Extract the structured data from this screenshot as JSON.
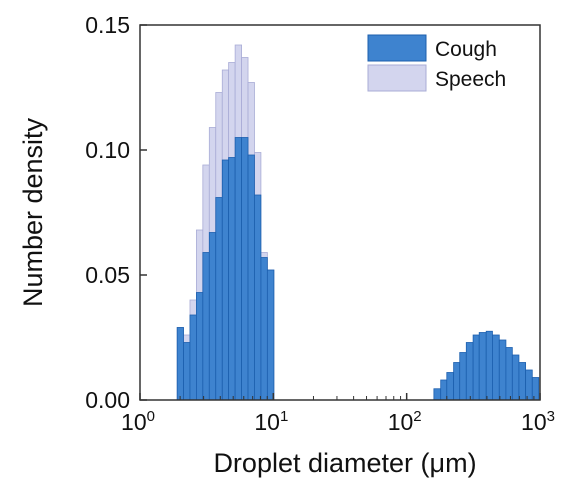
{
  "chart_data": {
    "type": "bar",
    "x_scale": "log",
    "xlabel": "Droplet diameter (μm)",
    "ylabel": "Number density",
    "xlim": [
      1,
      1000
    ],
    "ylim": [
      0,
      0.15
    ],
    "grid": false,
    "legend_position": "top-right",
    "x_ticks": [
      {
        "value": 1,
        "base": "10",
        "exp": "0"
      },
      {
        "value": 10,
        "base": "10",
        "exp": "1"
      },
      {
        "value": 100,
        "base": "10",
        "exp": "2"
      },
      {
        "value": 1000,
        "base": "10",
        "exp": "3"
      }
    ],
    "y_ticks": [
      "0.00",
      "0.05",
      "0.10",
      "0.15"
    ],
    "y_tick_values": [
      0,
      0.05,
      0.1,
      0.15
    ],
    "series": [
      {
        "name": "Speech",
        "color": "#d3d5ee",
        "edge": "#a9acd6",
        "bins": [
          {
            "x0": 1.9,
            "x1": 2.12,
            "value": 0.029
          },
          {
            "x0": 2.12,
            "x1": 2.37,
            "value": 0.026
          },
          {
            "x0": 2.37,
            "x1": 2.65,
            "value": 0.04
          },
          {
            "x0": 2.65,
            "x1": 2.96,
            "value": 0.068
          },
          {
            "x0": 2.96,
            "x1": 3.31,
            "value": 0.094
          },
          {
            "x0": 3.31,
            "x1": 3.7,
            "value": 0.109
          },
          {
            "x0": 3.7,
            "x1": 4.14,
            "value": 0.123
          },
          {
            "x0": 4.14,
            "x1": 4.62,
            "value": 0.132
          },
          {
            "x0": 4.62,
            "x1": 5.17,
            "value": 0.135
          },
          {
            "x0": 5.17,
            "x1": 5.78,
            "value": 0.142
          },
          {
            "x0": 5.78,
            "x1": 6.46,
            "value": 0.137
          },
          {
            "x0": 6.46,
            "x1": 7.22,
            "value": 0.127
          },
          {
            "x0": 7.22,
            "x1": 8.07,
            "value": 0.099
          },
          {
            "x0": 8.07,
            "x1": 9.02,
            "value": 0.059
          },
          {
            "x0": 9.02,
            "x1": 10.1,
            "value": 0.052
          }
        ]
      },
      {
        "name": "Cough",
        "color": "#3e83cf",
        "edge": "#1c5fae",
        "bins": [
          {
            "x0": 1.9,
            "x1": 2.12,
            "value": 0.029
          },
          {
            "x0": 2.12,
            "x1": 2.37,
            "value": 0.023
          },
          {
            "x0": 2.37,
            "x1": 2.65,
            "value": 0.034
          },
          {
            "x0": 2.65,
            "x1": 2.96,
            "value": 0.043
          },
          {
            "x0": 2.96,
            "x1": 3.31,
            "value": 0.059
          },
          {
            "x0": 3.31,
            "x1": 3.7,
            "value": 0.067
          },
          {
            "x0": 3.7,
            "x1": 4.14,
            "value": 0.081
          },
          {
            "x0": 4.14,
            "x1": 4.62,
            "value": 0.096
          },
          {
            "x0": 4.62,
            "x1": 5.17,
            "value": 0.097
          },
          {
            "x0": 5.17,
            "x1": 5.78,
            "value": 0.105
          },
          {
            "x0": 5.78,
            "x1": 6.46,
            "value": 0.105
          },
          {
            "x0": 6.46,
            "x1": 7.22,
            "value": 0.098
          },
          {
            "x0": 7.22,
            "x1": 8.07,
            "value": 0.082
          },
          {
            "x0": 8.07,
            "x1": 9.02,
            "value": 0.057
          },
          {
            "x0": 9.02,
            "x1": 10.1,
            "value": 0.052
          },
          {
            "x0": 160,
            "x1": 180,
            "value": 0.0045
          },
          {
            "x0": 180,
            "x1": 200,
            "value": 0.008
          },
          {
            "x0": 200,
            "x1": 225,
            "value": 0.011
          },
          {
            "x0": 225,
            "x1": 250,
            "value": 0.015
          },
          {
            "x0": 250,
            "x1": 280,
            "value": 0.019
          },
          {
            "x0": 280,
            "x1": 315,
            "value": 0.023
          },
          {
            "x0": 315,
            "x1": 350,
            "value": 0.026
          },
          {
            "x0": 350,
            "x1": 395,
            "value": 0.027
          },
          {
            "x0": 395,
            "x1": 440,
            "value": 0.0275
          },
          {
            "x0": 440,
            "x1": 495,
            "value": 0.026
          },
          {
            "x0": 495,
            "x1": 555,
            "value": 0.024
          },
          {
            "x0": 555,
            "x1": 620,
            "value": 0.021
          },
          {
            "x0": 620,
            "x1": 695,
            "value": 0.018
          },
          {
            "x0": 695,
            "x1": 780,
            "value": 0.015
          },
          {
            "x0": 780,
            "x1": 875,
            "value": 0.012
          },
          {
            "x0": 875,
            "x1": 980,
            "value": 0.009
          }
        ]
      }
    ],
    "legend": [
      {
        "label": "Cough",
        "color": "#3e83cf",
        "edge": "#1c5fae"
      },
      {
        "label": "Speech",
        "color": "#d3d5ee",
        "edge": "#a9acd6"
      }
    ]
  }
}
